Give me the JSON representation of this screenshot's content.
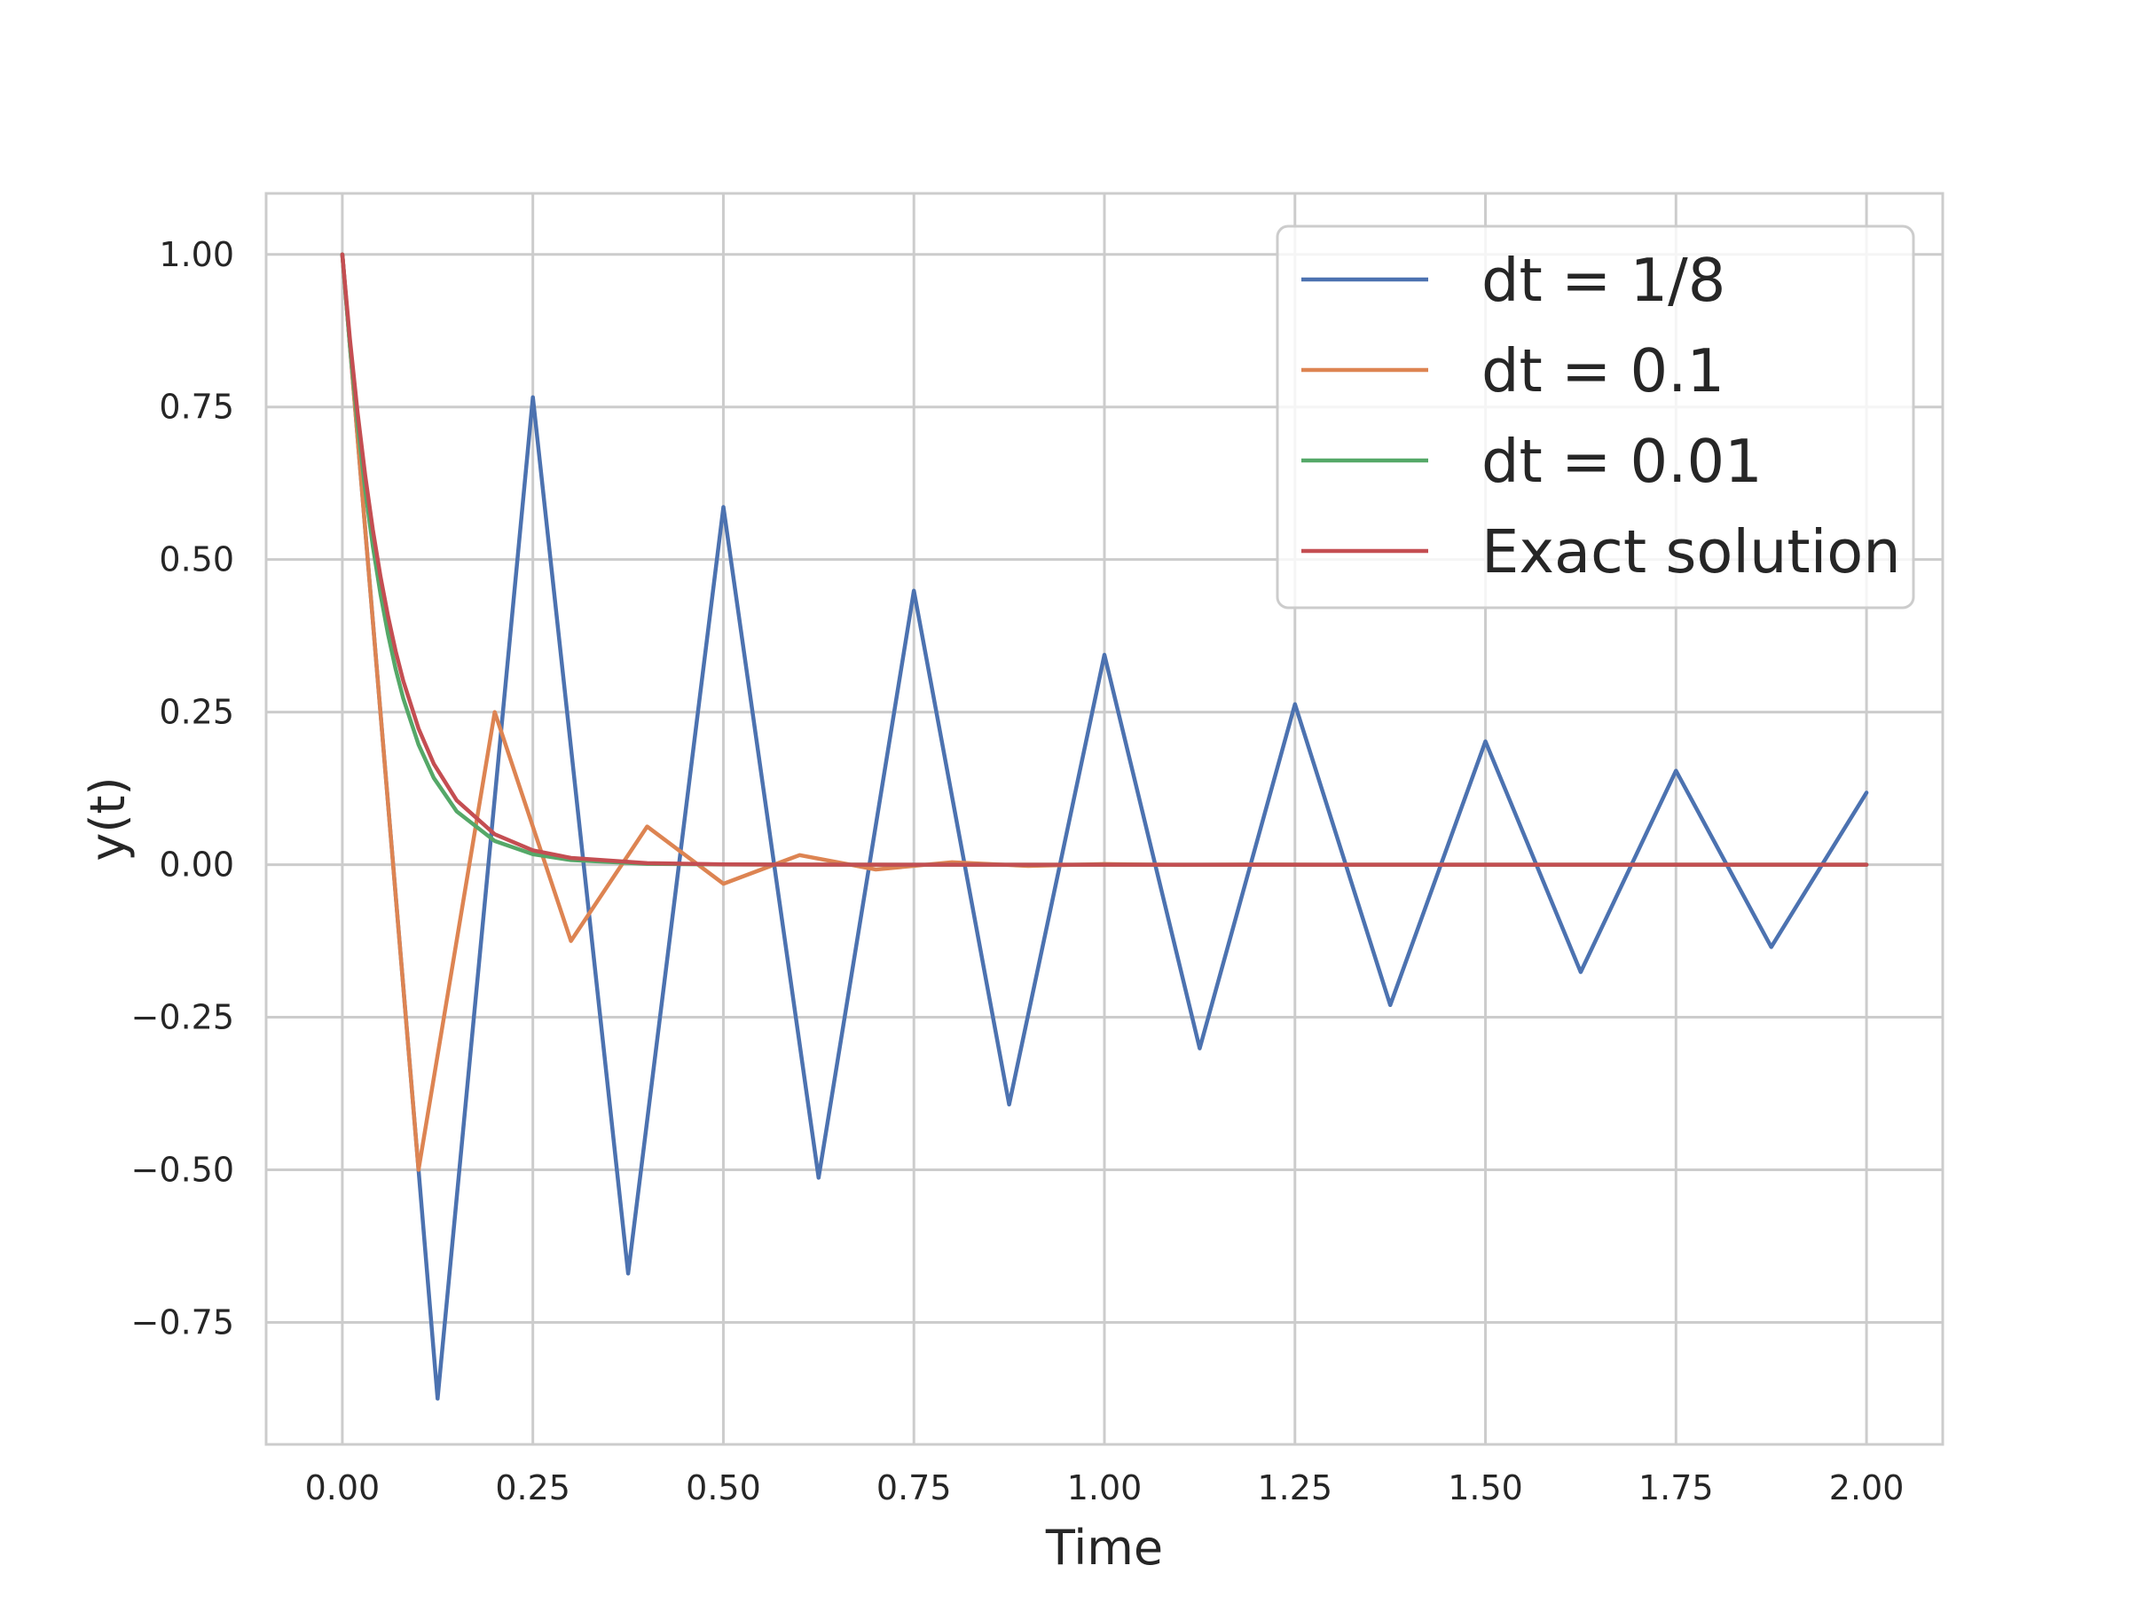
{
  "chart_data": {
    "type": "line",
    "title": "",
    "xlabel": "Time",
    "ylabel": "y(t)",
    "xlim": [
      -0.1,
      2.1
    ],
    "ylim": [
      -0.95,
      1.1
    ],
    "grid": true,
    "legend_position": "top-right",
    "xticks": [
      0,
      0.25,
      0.5,
      0.75,
      1.0,
      1.25,
      1.5,
      1.75,
      2.0
    ],
    "xtick_labels": [
      "0.00",
      "0.25",
      "0.50",
      "0.75",
      "1.00",
      "1.25",
      "1.50",
      "1.75",
      "2.00"
    ],
    "yticks": [
      1.0,
      0.75,
      0.5,
      0.25,
      0.0,
      -0.25,
      -0.5,
      -0.75
    ],
    "ytick_labels": [
      "1.00",
      "0.75",
      "0.50",
      "0.25",
      "0.00",
      "−0.25",
      "−0.50",
      "−0.75"
    ],
    "series": [
      {
        "name": "dt = 1/8",
        "color": "#4c72b0",
        "x": [
          0,
          0.125,
          0.25,
          0.375,
          0.5,
          0.625,
          0.75,
          0.875,
          1.0,
          1.125,
          1.25,
          1.375,
          1.5,
          1.625,
          1.75,
          1.875,
          2.0
        ],
        "y": [
          1.0,
          -0.875,
          0.766,
          -0.67,
          0.586,
          -0.513,
          0.449,
          -0.393,
          0.344,
          -0.301,
          0.263,
          -0.23,
          0.202,
          -0.176,
          0.154,
          -0.135,
          0.118
        ]
      },
      {
        "name": "dt = 0.1",
        "color": "#dd8452",
        "x": [
          0,
          0.1,
          0.2,
          0.3,
          0.4,
          0.5,
          0.6,
          0.7,
          0.8,
          0.9,
          1.0,
          1.1,
          1.2,
          1.3,
          1.4,
          1.5,
          1.6,
          1.7,
          1.8,
          1.9,
          2.0
        ],
        "y": [
          1.0,
          -0.5,
          0.25,
          -0.125,
          0.0625,
          -0.03125,
          0.015625,
          -0.0078,
          0.0039,
          -0.002,
          0.001,
          -0.0005,
          0.0002,
          -0.0001,
          0.0,
          0.0,
          0.0,
          0.0,
          0.0,
          0.0,
          0.0
        ]
      },
      {
        "name": "dt = 0.01",
        "color": "#55a868",
        "x": [
          0,
          0.01,
          0.02,
          0.03,
          0.04,
          0.05,
          0.06,
          0.07,
          0.08,
          0.1,
          0.12,
          0.15,
          0.2,
          0.25,
          0.3,
          0.4,
          0.5,
          0.6,
          0.8,
          1.0,
          1.5,
          2.0
        ],
        "y": [
          1.0,
          0.85,
          0.7225,
          0.6141,
          0.522,
          0.4437,
          0.3771,
          0.3206,
          0.2725,
          0.1969,
          0.1422,
          0.0874,
          0.0388,
          0.0172,
          0.0076,
          0.0015,
          0.0003,
          0.0001,
          0.0,
          0.0,
          0.0,
          0.0
        ]
      },
      {
        "name": "Exact solution",
        "color": "#c44e52",
        "x": [
          0,
          0.01,
          0.02,
          0.03,
          0.04,
          0.05,
          0.06,
          0.07,
          0.08,
          0.1,
          0.12,
          0.15,
          0.2,
          0.25,
          0.3,
          0.4,
          0.5,
          0.6,
          0.8,
          1.0,
          1.5,
          2.0
        ],
        "y": [
          1.0,
          0.8607,
          0.7408,
          0.6376,
          0.5488,
          0.4724,
          0.4066,
          0.3499,
          0.3012,
          0.2231,
          0.1653,
          0.1054,
          0.0498,
          0.0235,
          0.0111,
          0.0025,
          0.0006,
          0.0001,
          0.0,
          0.0,
          0.0,
          0.0
        ]
      }
    ]
  },
  "colors": {
    "grid": "#cccccc",
    "frame": "#cccccc",
    "text": "#262626"
  }
}
